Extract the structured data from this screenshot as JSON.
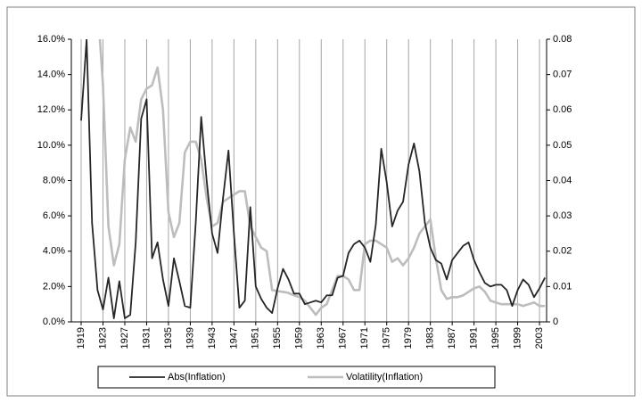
{
  "chart_data": {
    "type": "line",
    "x": [
      1919,
      1920,
      1921,
      1922,
      1923,
      1924,
      1925,
      1926,
      1927,
      1928,
      1929,
      1930,
      1931,
      1932,
      1933,
      1934,
      1935,
      1936,
      1937,
      1938,
      1939,
      1940,
      1941,
      1942,
      1943,
      1944,
      1945,
      1946,
      1947,
      1948,
      1949,
      1950,
      1951,
      1952,
      1953,
      1954,
      1955,
      1956,
      1957,
      1958,
      1959,
      1960,
      1961,
      1962,
      1963,
      1964,
      1965,
      1966,
      1967,
      1968,
      1969,
      1970,
      1971,
      1972,
      1973,
      1974,
      1975,
      1976,
      1977,
      1978,
      1979,
      1980,
      1981,
      1982,
      1983,
      1984,
      1985,
      1986,
      1987,
      1988,
      1989,
      1990,
      1991,
      1992,
      1993,
      1994,
      1995,
      1996,
      1997,
      1998,
      1999,
      2000,
      2001,
      2002,
      2003,
      2004
    ],
    "xlim": [
      1917.2,
      2004.3
    ],
    "xticks": [
      1919,
      1923,
      1927,
      1931,
      1935,
      1939,
      1943,
      1947,
      1951,
      1955,
      1959,
      1963,
      1967,
      1971,
      1975,
      1979,
      1983,
      1987,
      1991,
      1995,
      1999,
      2003
    ],
    "ylim": [
      0,
      16
    ],
    "yticks": [
      {
        "value": 0,
        "label": "0.0%"
      },
      {
        "value": 2,
        "label": "2.0%"
      },
      {
        "value": 4,
        "label": "4.0%"
      },
      {
        "value": 6,
        "label": "6.0%"
      },
      {
        "value": 8,
        "label": "8.0%"
      },
      {
        "value": 10,
        "label": "10.0%"
      },
      {
        "value": 12,
        "label": "12.0%"
      },
      {
        "value": 14,
        "label": "14.0%"
      },
      {
        "value": 16,
        "label": "16.0%"
      }
    ],
    "y2lim": [
      0,
      0.08
    ],
    "y2ticks": [
      0,
      0.01,
      0.02,
      0.03,
      0.04,
      0.05,
      0.06,
      0.07,
      0.08
    ],
    "grid": "x",
    "legend": "bottom",
    "series": [
      {
        "name": "Abs(Inflation)",
        "color": "#262626",
        "values": [
          11.4,
          16.0,
          5.6,
          1.8,
          0.7,
          2.5,
          0.2,
          2.3,
          0.2,
          0.4,
          4.5,
          11.5,
          12.6,
          3.6,
          4.5,
          2.4,
          0.9,
          3.6,
          2.3,
          0.9,
          0.8,
          5.6,
          11.6,
          8.0,
          5.0,
          3.9,
          7.0,
          9.7,
          5.0,
          0.8,
          1.2,
          6.5,
          2.0,
          1.3,
          0.8,
          0.5,
          1.9,
          3.0,
          2.4,
          1.6,
          1.6,
          1.0,
          1.1,
          1.2,
          1.1,
          1.5,
          1.5,
          2.5,
          2.6,
          3.9,
          4.4,
          4.6,
          4.2,
          3.4,
          5.5,
          9.8,
          7.9,
          5.4,
          6.3,
          6.8,
          8.9,
          10.1,
          8.5,
          5.6,
          4.2,
          3.5,
          3.3,
          2.4,
          3.5,
          3.9,
          4.3,
          4.5,
          3.5,
          2.8,
          2.2,
          2.0,
          2.1,
          2.1,
          1.8,
          0.9,
          1.8,
          2.4,
          2.1,
          1.4,
          1.9,
          2.5
        ]
      },
      {
        "name": "Volatility(Inflation)",
        "color": "#bdbdbd",
        "axis": "y2",
        "values": [
          null,
          null,
          null,
          0.09,
          0.067,
          0.027,
          0.016,
          0.022,
          0.046,
          0.055,
          0.051,
          0.063,
          0.066,
          0.067,
          0.072,
          0.06,
          0.031,
          0.024,
          0.028,
          0.048,
          0.051,
          0.051,
          0.046,
          0.035,
          0.027,
          0.028,
          0.034,
          0.035,
          0.036,
          0.037,
          0.037,
          0.027,
          0.024,
          0.021,
          0.02,
          0.009,
          0.0087,
          0.0085,
          0.0082,
          0.0075,
          0.007,
          0.006,
          0.004,
          0.002,
          0.004,
          0.005,
          0.009,
          0.013,
          0.013,
          0.012,
          0.009,
          0.009,
          0.022,
          0.023,
          0.023,
          0.022,
          0.021,
          0.017,
          0.018,
          0.016,
          0.018,
          0.021,
          0.025,
          0.027,
          0.029,
          0.018,
          0.009,
          0.0065,
          0.007,
          0.007,
          0.0075,
          0.0085,
          0.0095,
          0.01,
          0.0085,
          0.006,
          0.0055,
          0.005,
          0.005,
          0.005,
          0.005,
          0.0045,
          0.005,
          0.0055,
          0.0045,
          0.0045
        ]
      }
    ]
  }
}
